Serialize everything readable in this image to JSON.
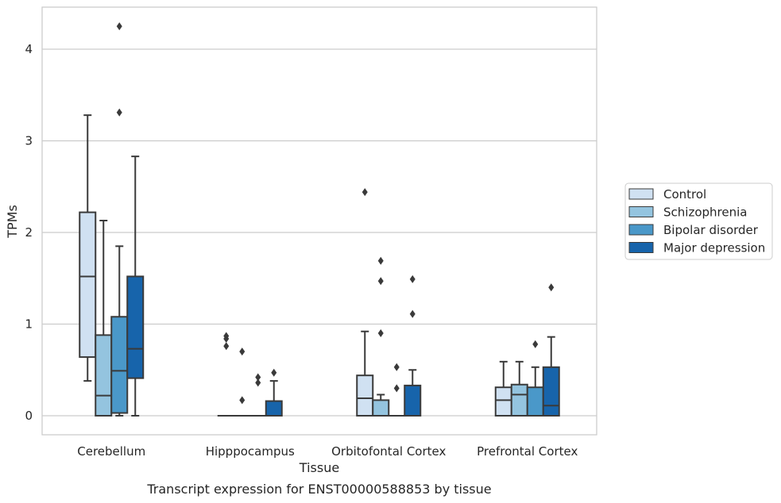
{
  "chart_data": {
    "type": "box",
    "xlabel": "Tissue",
    "ylabel": "TPMs",
    "caption": "Transcript expression for ENST00000588853 by tissue",
    "ylim": [
      -0.2,
      4.45
    ],
    "yticks": [
      0,
      1,
      2,
      3,
      4
    ],
    "grid": "horizontal",
    "legend_position": "right",
    "categories": [
      "Cerebellum",
      "Hipppocampus",
      "Orbitofontal Cortex",
      "Prefrontal Cortex"
    ],
    "series": [
      {
        "name": "Control",
        "color": "#d0e1f2",
        "boxes": [
          {
            "whislo": 0.38,
            "q1": 0.64,
            "med": 1.52,
            "q3": 2.22,
            "whishi": 3.28,
            "fliers": []
          },
          {
            "whislo": 0,
            "q1": 0,
            "med": 0,
            "q3": 0,
            "whishi": 0,
            "fliers": [
              0.76,
              0.84,
              0.87
            ]
          },
          {
            "whislo": 0,
            "q1": 0,
            "med": 0.19,
            "q3": 0.44,
            "whishi": 0.92,
            "fliers": [
              2.44
            ]
          },
          {
            "whislo": 0,
            "q1": 0,
            "med": 0.17,
            "q3": 0.31,
            "whishi": 0.59,
            "fliers": []
          }
        ]
      },
      {
        "name": "Schizophrenia",
        "color": "#94c4df",
        "boxes": [
          {
            "whislo": 0,
            "q1": 0,
            "med": 0.22,
            "q3": 0.88,
            "whishi": 2.13,
            "fliers": []
          },
          {
            "whislo": 0,
            "q1": 0,
            "med": 0,
            "q3": 0,
            "whishi": 0,
            "fliers": [
              0.17,
              0.7
            ]
          },
          {
            "whislo": 0,
            "q1": 0,
            "med": 0,
            "q3": 0.17,
            "whishi": 0.23,
            "fliers": [
              0.9,
              1.47,
              1.69
            ]
          },
          {
            "whislo": 0,
            "q1": 0,
            "med": 0.23,
            "q3": 0.34,
            "whishi": 0.59,
            "fliers": []
          }
        ]
      },
      {
        "name": "Bipolar disorder",
        "color": "#4a98c9",
        "boxes": [
          {
            "whislo": 0,
            "q1": 0.03,
            "med": 0.49,
            "q3": 1.08,
            "whishi": 1.85,
            "fliers": [
              3.31,
              4.25
            ]
          },
          {
            "whislo": 0,
            "q1": 0,
            "med": 0,
            "q3": 0,
            "whishi": 0,
            "fliers": [
              0.36,
              0.42
            ]
          },
          {
            "whislo": 0,
            "q1": 0,
            "med": 0,
            "q3": 0,
            "whishi": 0,
            "fliers": [
              0.3,
              0.53
            ]
          },
          {
            "whislo": 0,
            "q1": 0,
            "med": 0,
            "q3": 0.31,
            "whishi": 0.53,
            "fliers": [
              0.78
            ]
          }
        ]
      },
      {
        "name": "Major depression",
        "color": "#1764ab",
        "boxes": [
          {
            "whislo": 0,
            "q1": 0.41,
            "med": 0.73,
            "q3": 1.52,
            "whishi": 2.83,
            "fliers": []
          },
          {
            "whislo": 0,
            "q1": 0,
            "med": 0,
            "q3": 0.16,
            "whishi": 0.38,
            "fliers": [
              0.47
            ]
          },
          {
            "whislo": 0,
            "q1": 0,
            "med": 0,
            "q3": 0.33,
            "whishi": 0.5,
            "fliers": [
              1.11,
              1.49
            ]
          },
          {
            "whislo": 0,
            "q1": 0,
            "med": 0.11,
            "q3": 0.53,
            "whishi": 0.86,
            "fliers": [
              1.4
            ]
          }
        ]
      }
    ]
  }
}
